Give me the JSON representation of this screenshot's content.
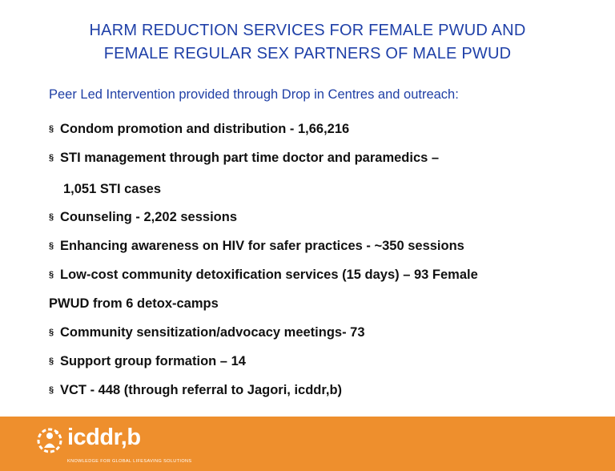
{
  "title": {
    "line1": "HARM REDUCTION SERVICES FOR FEMALE PWUD AND",
    "line2": "FEMALE REGULAR SEX PARTNERS OF MALE PWUD"
  },
  "subtitle": "Peer Led Intervention provided through Drop in Centres and outreach:",
  "bullet_mark": "§",
  "bullets": {
    "condom": "Condom promotion and distribution - 1,66,216",
    "sti": "STI management through part time doctor and paramedics –",
    "sti_cont": "1,051 STI cases",
    "counseling": "Counseling - 2,202 sessions",
    "awareness": "Enhancing awareness on HIV for safer practices - ~350 sessions",
    "detox": "Low-cost community detoxification services (15 days) – 93 Female",
    "detox_cont": "PWUD from 6 detox-camps",
    "sensitization": "Community sensitization/advocacy meetings- 73",
    "support": "Support group formation – 14",
    "vct": "VCT - 448 (through referral to Jagori, icddr,b)"
  },
  "footer": {
    "logo_text": "icddr,b",
    "tagline": "KNOWLEDGE FOR GLOBAL LIFESAVING SOLUTIONS",
    "logo_icon": "icddrb-logo-icon",
    "color": "#ee8f2d"
  },
  "colors": {
    "title": "#1f40a8",
    "body_text": "#111111"
  }
}
